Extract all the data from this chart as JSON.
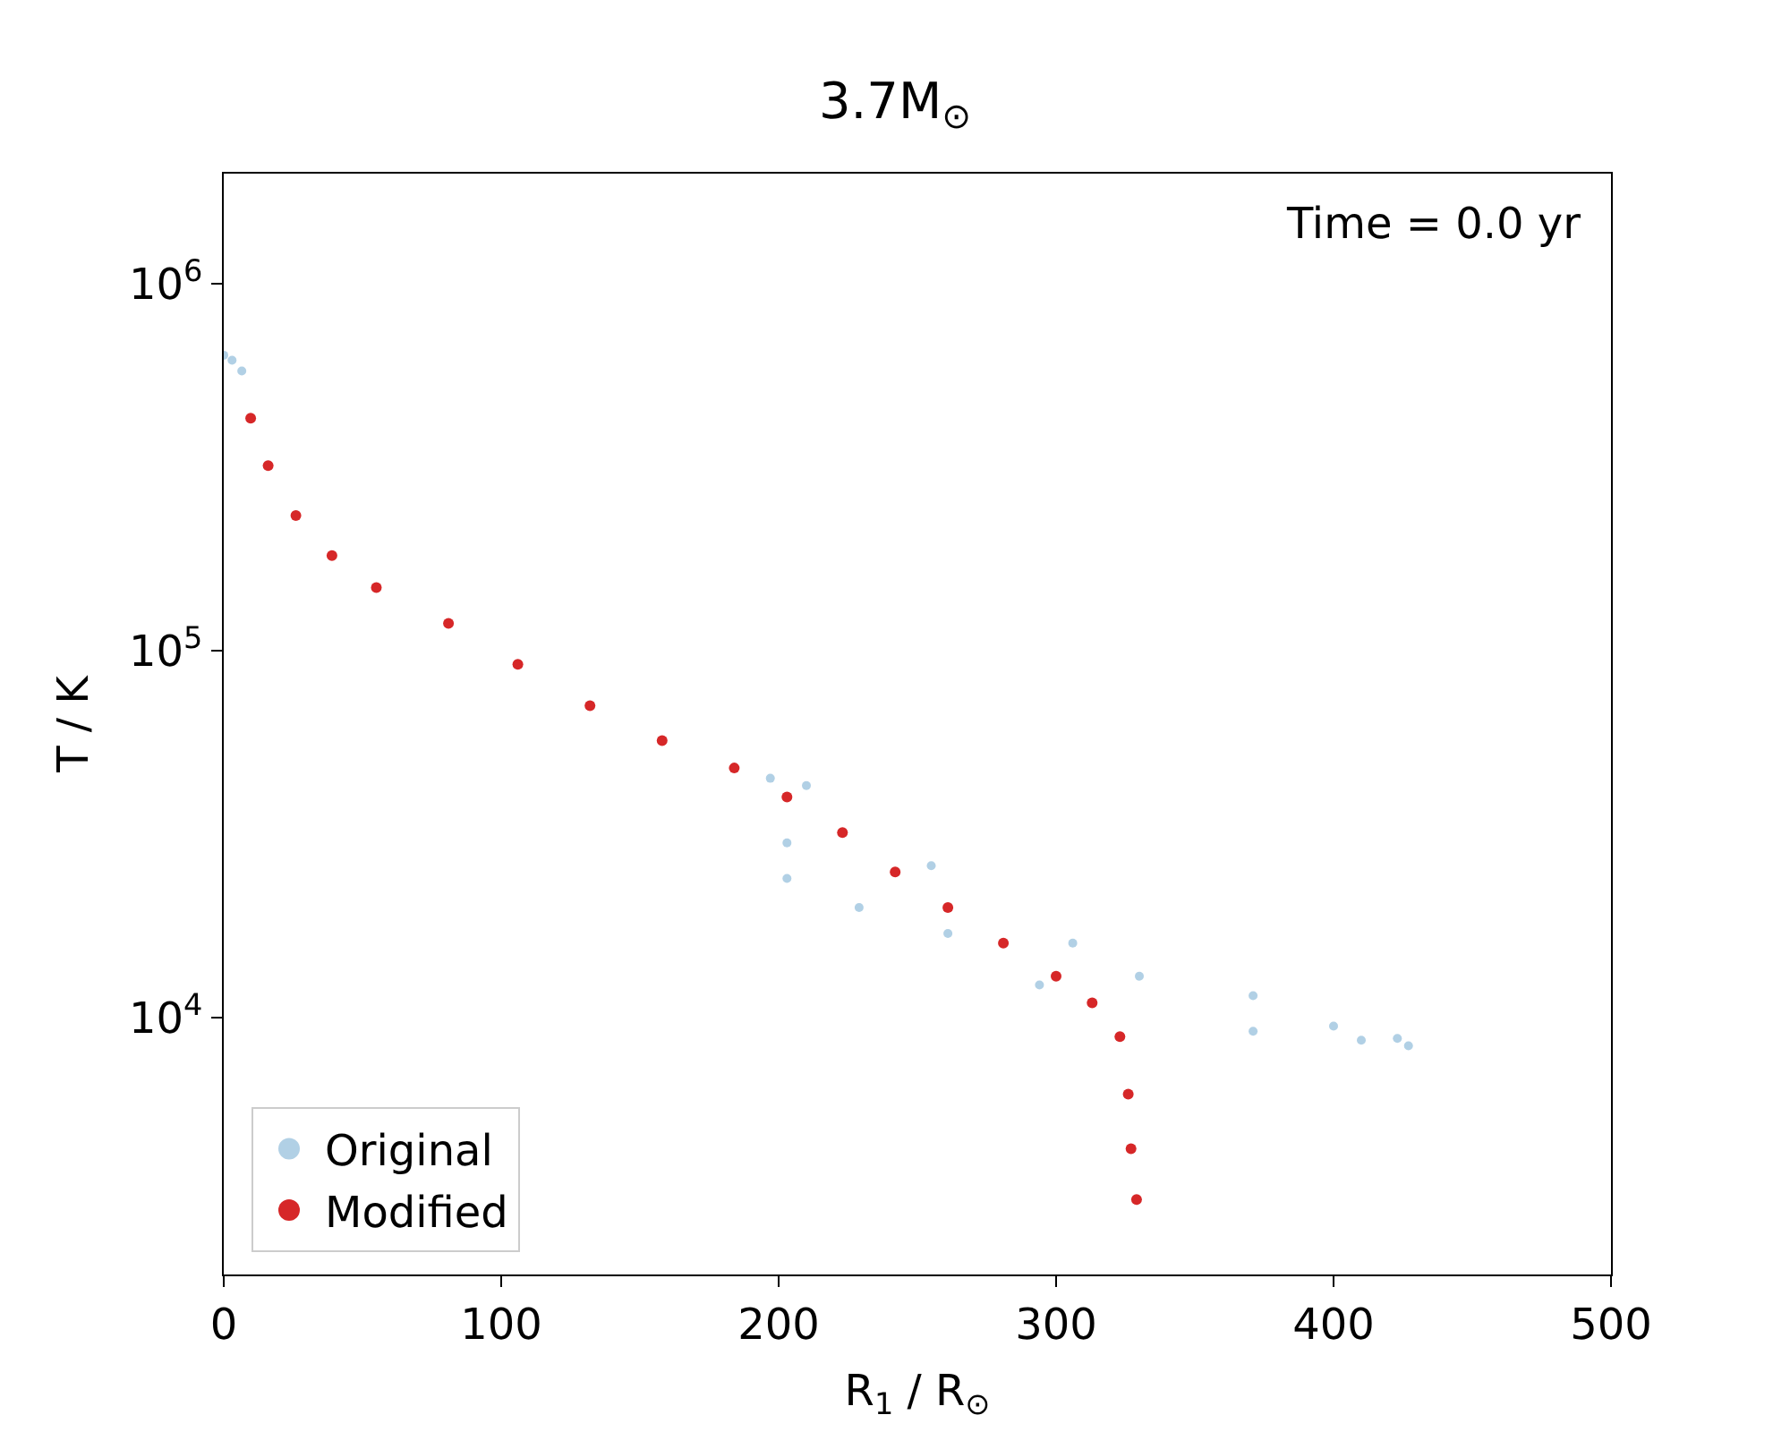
{
  "chart_data": {
    "type": "scatter",
    "title": "3.7M$_{⊙}$",
    "xlabel": "R$_{1}$ / R$_{⊙}$",
    "ylabel": "T / K",
    "annotations": [
      "Time = 0.0 yr"
    ],
    "xlim": [
      0,
      500
    ],
    "xticks": [
      0,
      100,
      200,
      300,
      400,
      500
    ],
    "ylim": [
      2000,
      2000000
    ],
    "log": "y",
    "yticks": [
      {
        "value": 10000,
        "label": "10$^{4}$"
      },
      {
        "value": 100000,
        "label": "10$^{5}$"
      },
      {
        "value": 1000000,
        "label": "10$^{6}$"
      }
    ],
    "legend": "bottom left",
    "marker": "circle",
    "series": [
      {
        "name": "Original",
        "color": "#1f77b4",
        "x": [
          0,
          3,
          6.5,
          197,
          203,
          210,
          203,
          229,
          255,
          261,
          294,
          306,
          330,
          371,
          371,
          400,
          410,
          423,
          427
        ],
        "values": [
          640000,
          620000,
          580000,
          45000,
          24000,
          43000,
          30000,
          20000,
          26000,
          17000,
          12300,
          16000,
          13000,
          11500,
          9200,
          9500,
          8700,
          8800,
          8400
        ]
      },
      {
        "name": "Modified",
        "color": "#d62728",
        "x": [
          9.7,
          16,
          26,
          39,
          55,
          81,
          106,
          132,
          158,
          184,
          203,
          223,
          242,
          261,
          281,
          300,
          313,
          323,
          326,
          327,
          329
        ],
        "values": [
          431000,
          320000,
          234000,
          182000,
          149000,
          119000,
          92000,
          71000,
          57000,
          48000,
          40000,
          32000,
          25000,
          20000,
          16000,
          13000,
          11000,
          8900,
          6200,
          4400,
          3200
        ]
      }
    ]
  }
}
